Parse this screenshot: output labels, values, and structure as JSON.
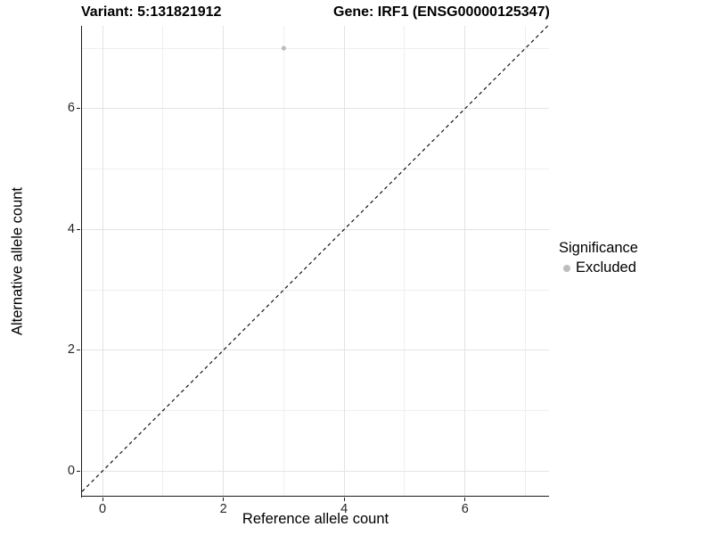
{
  "chart_data": {
    "type": "scatter",
    "title_variant": "Variant: 5:131821912",
    "title_gene": "Gene: IRF1 (ENSG00000125347)",
    "xlabel": "Reference allele count",
    "ylabel": "Alternative allele count",
    "x_ticks": [
      0,
      2,
      4,
      6
    ],
    "y_ticks": [
      0,
      2,
      4,
      6
    ],
    "x_minor": [
      1,
      3,
      5,
      7
    ],
    "y_minor": [
      1,
      3,
      5,
      7
    ],
    "xlim": [
      -0.34,
      7.39
    ],
    "ylim": [
      -0.41,
      7.37
    ],
    "grid": true,
    "points": [
      {
        "x": 3,
        "y": 7,
        "series": "Excluded"
      }
    ],
    "reference_line": {
      "type": "identity",
      "style": "dashed",
      "color": "#000000"
    },
    "legend": {
      "position": "right",
      "title": "Significance",
      "items": [
        {
          "label": "Excluded",
          "color": "#bdbdbd"
        }
      ]
    },
    "colors": {
      "point": "#bdbdbd",
      "axis": "#1a1a1a",
      "grid_major": "#e3e3e3",
      "grid_minor": "#efefef"
    }
  }
}
